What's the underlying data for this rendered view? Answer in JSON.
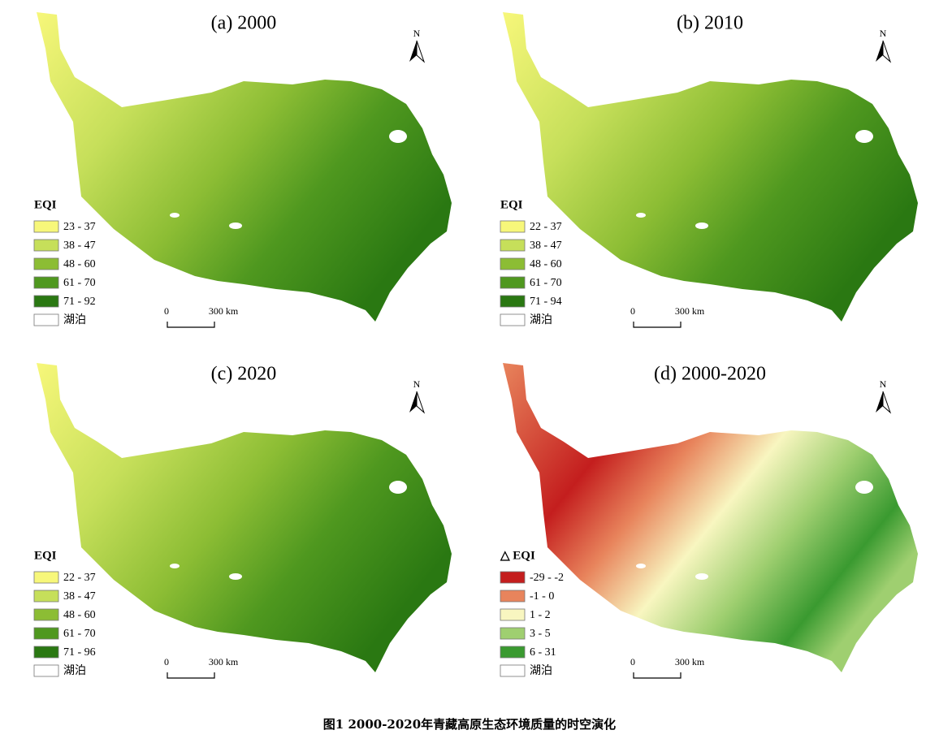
{
  "panels": [
    {
      "title": "(a) 2000",
      "legend_title": "EQI",
      "north": "N",
      "scale": [
        "0",
        "300 km"
      ],
      "legend": [
        {
          "label": "23 - 37",
          "color": "#f7f77a"
        },
        {
          "label": "38 - 47",
          "color": "#c6df5a"
        },
        {
          "label": "48 - 60",
          "color": "#8cbd34"
        },
        {
          "label": "61 - 70",
          "color": "#4f981f"
        },
        {
          "label": "71 - 92",
          "color": "#2a7812"
        },
        {
          "label": "湖泊",
          "color": "#ffffff"
        }
      ]
    },
    {
      "title": "(b) 2010",
      "legend_title": "EQI",
      "north": "N",
      "scale": [
        "0",
        "300 km"
      ],
      "legend": [
        {
          "label": "22 - 37",
          "color": "#f7f77a"
        },
        {
          "label": "38 - 47",
          "color": "#c6df5a"
        },
        {
          "label": "48 - 60",
          "color": "#8cbd34"
        },
        {
          "label": "61 - 70",
          "color": "#4f981f"
        },
        {
          "label": "71 - 94",
          "color": "#2a7812"
        },
        {
          "label": "湖泊",
          "color": "#ffffff"
        }
      ]
    },
    {
      "title": "(c) 2020",
      "legend_title": "EQI",
      "north": "N",
      "scale": [
        "0",
        "300 km"
      ],
      "legend": [
        {
          "label": "22 - 37",
          "color": "#f7f77a"
        },
        {
          "label": "38 - 47",
          "color": "#c6df5a"
        },
        {
          "label": "48 - 60",
          "color": "#8cbd34"
        },
        {
          "label": "61 - 70",
          "color": "#4f981f"
        },
        {
          "label": "71 - 96",
          "color": "#2a7812"
        },
        {
          "label": "湖泊",
          "color": "#ffffff"
        }
      ]
    },
    {
      "title": "(d) 2000-2020",
      "legend_title": "△ EQI",
      "north": "N",
      "scale": [
        "0",
        "300 km"
      ],
      "legend": [
        {
          "label": "-29 - -2",
          "color": "#c41e1e"
        },
        {
          "label": "-1 - 0",
          "color": "#e8845c"
        },
        {
          "label": "1 - 2",
          "color": "#f8f6c0"
        },
        {
          "label": "3 - 5",
          "color": "#9fcf70"
        },
        {
          "label": "6 - 31",
          "color": "#3a9a30"
        },
        {
          "label": "湖泊",
          "color": "#ffffff"
        }
      ]
    }
  ],
  "caption": "图1 2000-2020年青藏高原生态环境质量的时空演化"
}
